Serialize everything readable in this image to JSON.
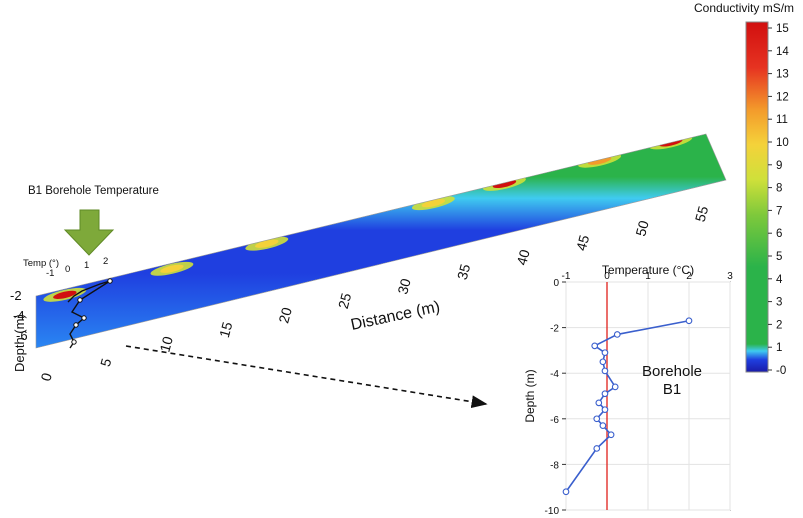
{
  "colors": {
    "scale": [
      "#1a1aa8",
      "#1f3fe0",
      "#2a86f2",
      "#3fcbf0",
      "#2bb34a",
      "#7fc93b",
      "#cfe03a",
      "#f4d23a",
      "#f39a2b",
      "#e63321",
      "#d10f0f"
    ],
    "profile_line": "#3a5fcd",
    "zero_line": "#e0211b",
    "arrow": "#7ea93a"
  },
  "annotations": {
    "borehole_label": "B1 Borehole Temperature",
    "temp_label": "Temp (°)",
    "borehole_text_line1": "Borehole",
    "borehole_text_line2": "B1"
  },
  "colorbar": {
    "title": "Conductivity mS/m",
    "ticks": [
      "15",
      "14",
      "13",
      "12",
      "11",
      "10",
      "9",
      "8",
      "7",
      "6",
      "5",
      "4",
      "3",
      "2",
      "1",
      "-0"
    ]
  },
  "chart_data": [
    {
      "type": "heatmap",
      "title": "",
      "xlabel": "Distance (m)",
      "ylabel": "Depth (m)",
      "x_ticks": [
        "0",
        "5",
        "10",
        "15",
        "20",
        "25",
        "30",
        "35",
        "40",
        "45",
        "50",
        "55"
      ],
      "y_ticks": [
        "-2",
        "-4",
        "-6"
      ],
      "xlim": [
        0,
        58
      ],
      "ylim": [
        -6.5,
        -1
      ],
      "temp_axis_ticks": [
        "-1",
        "0",
        "1",
        "2"
      ],
      "high_conductivity_zones": [
        {
          "x": 3,
          "depth": -1.8,
          "value": 13
        },
        {
          "x": 12,
          "depth": -1.8,
          "value": 9
        },
        {
          "x": 20,
          "depth": -1.6,
          "value": 8
        },
        {
          "x": 34,
          "depth": -1.6,
          "value": 9
        },
        {
          "x": 40,
          "depth": -1.4,
          "value": 12
        },
        {
          "x": 48,
          "depth": -1.4,
          "value": 11
        },
        {
          "x": 54,
          "depth": -1.3,
          "value": 13
        }
      ]
    },
    {
      "type": "line",
      "title": "",
      "xlabel": "Temperature (°C)",
      "ylabel": "Depth (m)",
      "x_ticks": [
        "-1",
        "0",
        "1",
        "2",
        "3"
      ],
      "y_ticks": [
        "0",
        "-2",
        "-4",
        "-6",
        "-8",
        "-10"
      ],
      "xlim": [
        -1,
        3
      ],
      "ylim": [
        -10,
        0
      ],
      "series": [
        {
          "x": [
            2.0,
            0.25,
            -0.3,
            -0.05,
            -0.1,
            -0.05,
            0.2,
            -0.05,
            -0.2,
            -0.05,
            -0.25,
            -0.1,
            0.1,
            -0.25,
            -1.0
          ],
          "y": [
            -1.7,
            -2.3,
            -2.8,
            -3.1,
            -3.5,
            -3.9,
            -4.6,
            -4.9,
            -5.3,
            -5.6,
            -6.0,
            -6.3,
            -6.7,
            -7.3,
            -9.2
          ]
        }
      ]
    }
  ]
}
